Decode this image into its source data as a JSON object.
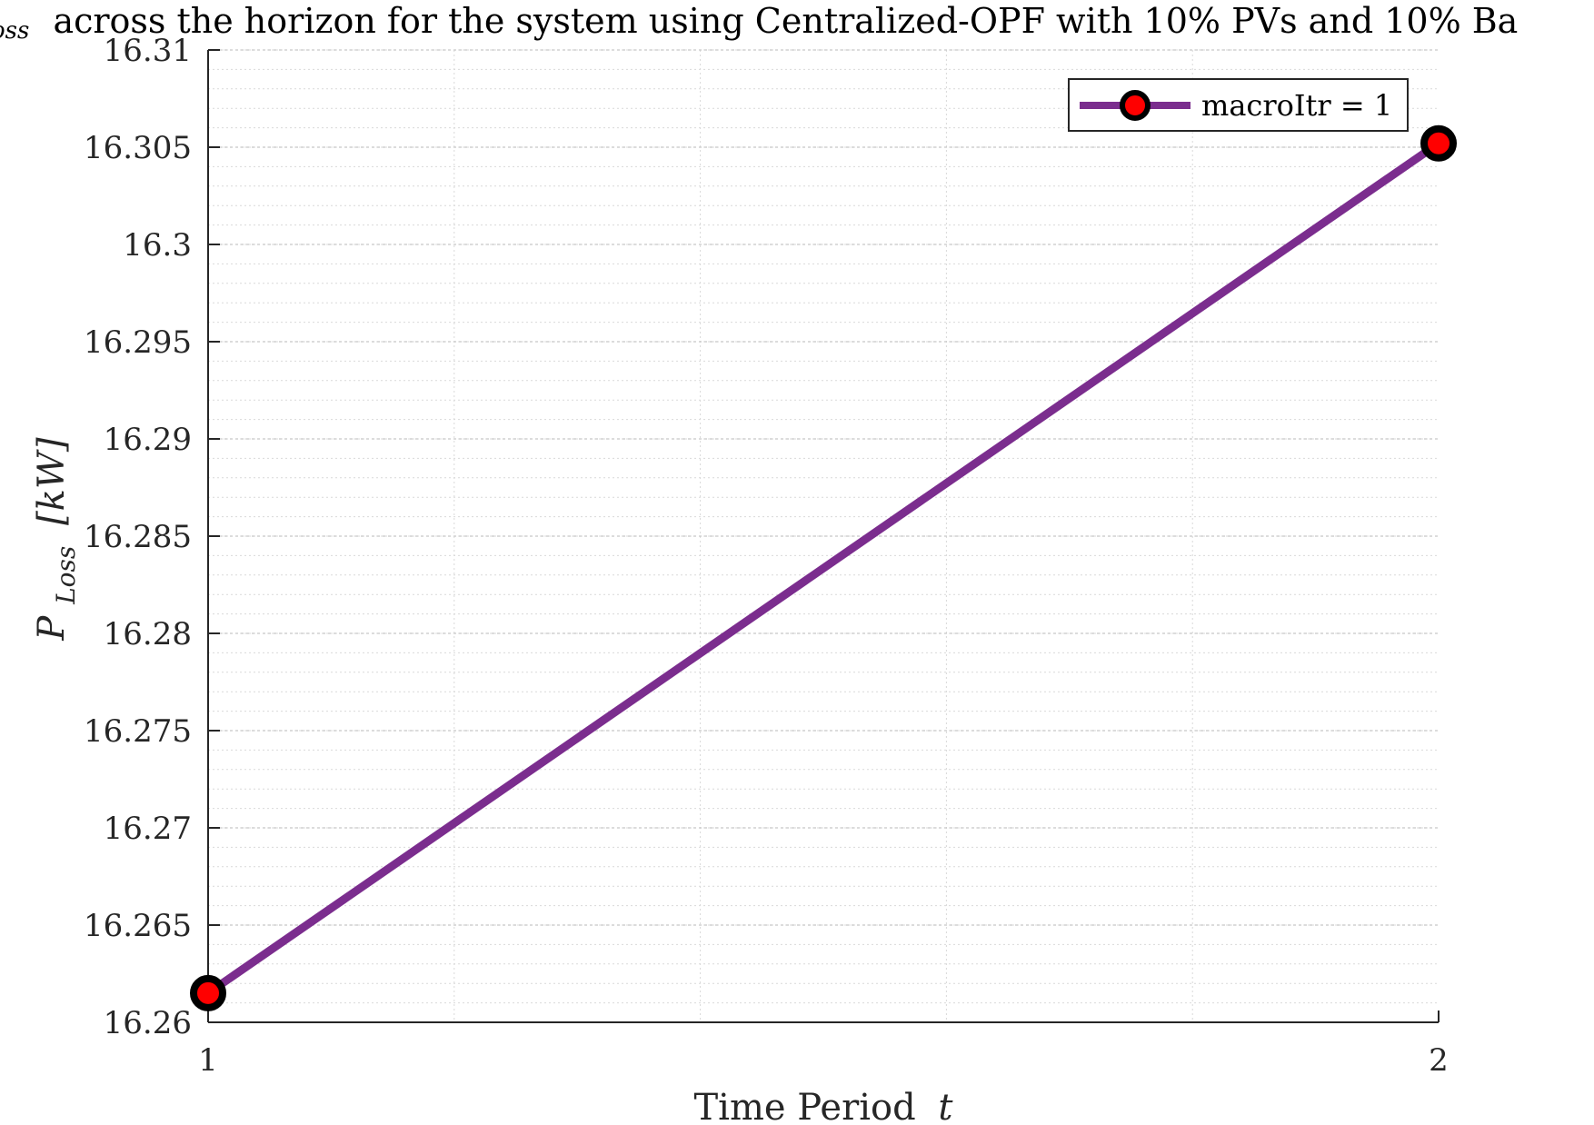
{
  "chart_data": {
    "type": "line",
    "title": "P_Loss across the horizon for the system using Centralized-OPF with 10% PVs and 10% Ba",
    "title_parts": {
      "sub_fragment": "oss",
      "main": "across the horizon for the system using Centralized-OPF with 10% PVs and 10% Ba"
    },
    "xlabel": "Time Period t",
    "xlabel_parts": {
      "text": "Time Period",
      "var": "t"
    },
    "ylabel": "P_Loss [kW]",
    "ylabel_parts": {
      "p": "P",
      "sub": "Loss",
      "unit": "[kW]"
    },
    "x": [
      1,
      2
    ],
    "series": [
      {
        "name": "macroItr = 1",
        "x": [
          1,
          2
        ],
        "values": [
          16.2615,
          16.3052
        ]
      }
    ],
    "xlim": [
      1,
      2
    ],
    "ylim": [
      16.26,
      16.31
    ],
    "xticks": [
      1,
      2
    ],
    "xtick_labels": [
      "1",
      "2"
    ],
    "yticks": [
      16.26,
      16.265,
      16.27,
      16.275,
      16.28,
      16.285,
      16.29,
      16.295,
      16.3,
      16.305,
      16.31
    ],
    "ytick_labels": [
      "16.26",
      "16.265",
      "16.27",
      "16.275",
      "16.28",
      "16.285",
      "16.29",
      "16.295",
      "16.3",
      "16.305",
      "16.31"
    ],
    "grid": true,
    "minor_grid": true,
    "legend_position": "top-right",
    "colors": {
      "line": "#7B2D8E",
      "marker_edge": "#000000",
      "marker_face": "#FF0000",
      "axis": "#262626",
      "grid_major": "#c8c8c8",
      "grid_minor": "#d9d9d9"
    }
  }
}
